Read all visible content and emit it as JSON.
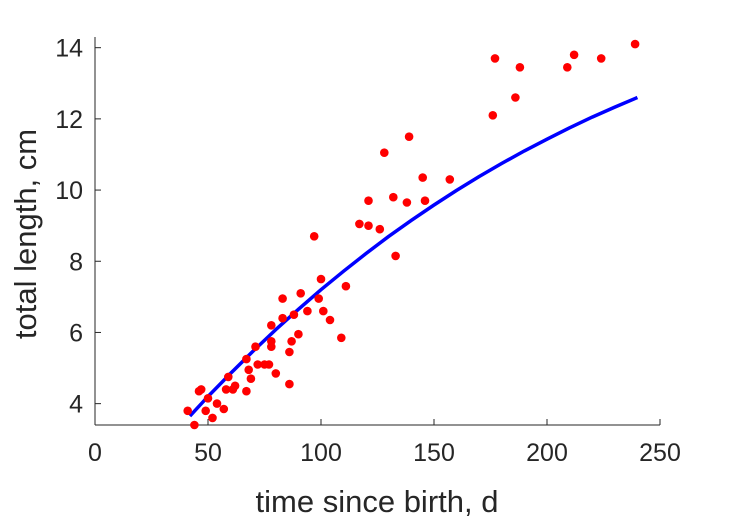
{
  "chart_data": {
    "type": "scatter",
    "title": "",
    "xlabel": "time since birth, d",
    "ylabel": "total length, cm",
    "xlim": [
      0,
      250
    ],
    "ylim": [
      3.4,
      14.3
    ],
    "xticks": [
      0,
      50,
      100,
      150,
      200,
      250
    ],
    "yticks": [
      4,
      6,
      8,
      10,
      12,
      14
    ],
    "grid": false,
    "legend": "none",
    "colors": {
      "points": "#ff0000",
      "fit_line": "#0000ff",
      "axis": "#262626"
    },
    "series": [
      {
        "type": "scatter",
        "points": [
          [
            41,
            3.8
          ],
          [
            44,
            3.4
          ],
          [
            46,
            4.35
          ],
          [
            47,
            4.4
          ],
          [
            49,
            3.8
          ],
          [
            50,
            4.15
          ],
          [
            52,
            3.6
          ],
          [
            54,
            4.0
          ],
          [
            57,
            3.85
          ],
          [
            58,
            4.4
          ],
          [
            59,
            4.75
          ],
          [
            61,
            4.4
          ],
          [
            62,
            4.5
          ],
          [
            67,
            4.35
          ],
          [
            67,
            5.25
          ],
          [
            68,
            4.95
          ],
          [
            69,
            4.7
          ],
          [
            71,
            5.6
          ],
          [
            72,
            5.1
          ],
          [
            75,
            5.1
          ],
          [
            77,
            5.1
          ],
          [
            78,
            5.6
          ],
          [
            78,
            5.75
          ],
          [
            78,
            6.2
          ],
          [
            80,
            4.85
          ],
          [
            83,
            6.95
          ],
          [
            83,
            6.4
          ],
          [
            86,
            4.55
          ],
          [
            86,
            5.45
          ],
          [
            87,
            5.75
          ],
          [
            88,
            6.5
          ],
          [
            90,
            5.95
          ],
          [
            91,
            7.1
          ],
          [
            94,
            6.6
          ],
          [
            97,
            8.7
          ],
          [
            99,
            6.95
          ],
          [
            100,
            7.5
          ],
          [
            101,
            6.6
          ],
          [
            104,
            6.35
          ],
          [
            109,
            5.85
          ],
          [
            111,
            7.3
          ],
          [
            117,
            9.05
          ],
          [
            121,
            9.7
          ],
          [
            121,
            9.0
          ],
          [
            126,
            8.9
          ],
          [
            128,
            11.05
          ],
          [
            132,
            9.8
          ],
          [
            133,
            8.15
          ],
          [
            138,
            9.65
          ],
          [
            139,
            11.5
          ],
          [
            145,
            10.35
          ],
          [
            146,
            9.7
          ],
          [
            157,
            10.3
          ],
          [
            176,
            12.1
          ],
          [
            177,
            13.7
          ],
          [
            186,
            12.6
          ],
          [
            188,
            13.45
          ],
          [
            209,
            13.45
          ],
          [
            212,
            13.8
          ],
          [
            224,
            13.7
          ],
          [
            239,
            14.1
          ]
        ]
      },
      {
        "type": "line",
        "x": [
          42,
          50,
          60,
          70,
          80,
          90,
          100,
          110,
          120,
          130,
          140,
          150,
          160,
          170,
          180,
          190,
          200,
          210,
          220,
          230,
          240
        ],
        "y": [
          3.65,
          4.2,
          4.85,
          5.48,
          6.08,
          6.65,
          7.2,
          7.72,
          8.22,
          8.7,
          9.15,
          9.58,
          9.99,
          10.38,
          10.75,
          11.1,
          11.43,
          11.75,
          12.05,
          12.33,
          12.6
        ]
      }
    ]
  }
}
